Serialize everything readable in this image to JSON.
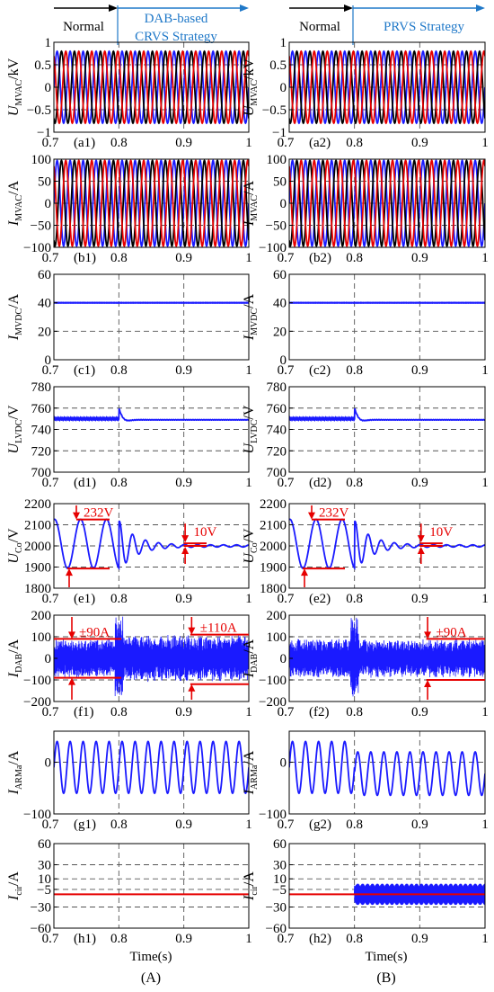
{
  "header": {
    "left": {
      "normal": "Normal",
      "strategy": [
        "DAB-based",
        "CRVS Strategy"
      ]
    },
    "right": {
      "normal": "Normal",
      "strategy": [
        "PRVS Strategy"
      ]
    }
  },
  "columns": [
    "(A)",
    "(B)"
  ],
  "xlabel": "Time(s)",
  "colors": {
    "phase_a": "#1a1aff",
    "phase_b": "#000000",
    "phase_c": "#e60000",
    "dc": "#1a1aff",
    "annotation": "#e60000",
    "strategy_arrow": "#1f78c8"
  },
  "chart_data": [
    {
      "id": "a",
      "type": "line",
      "ylabel": {
        "main": "U",
        "sub": "MVAC",
        "unit": "/kV"
      },
      "ylim": [
        -1,
        1
      ],
      "yticks": [
        -1,
        -0.5,
        0,
        0.5,
        1
      ],
      "ytick_labels": [
        "−1",
        "−0.5",
        "0",
        "0.5",
        "1"
      ],
      "xlim": [
        0.7,
        1
      ],
      "xticks": [
        "0.7",
        "0.8",
        "0.9",
        "1"
      ],
      "panel_labels": [
        "(a1)",
        "(a2)"
      ],
      "series": [
        {
          "kind": "ac3",
          "amplitude": 0.8,
          "frequency_hz": 50
        },
        {
          "kind": "ac3",
          "amplitude": 0.8,
          "frequency_hz": 50
        }
      ]
    },
    {
      "id": "b",
      "type": "line",
      "ylabel": {
        "main": "I",
        "sub": "MVAC",
        "unit": "/A"
      },
      "ylim": [
        -100,
        100
      ],
      "yticks": [
        -100,
        -50,
        0,
        50,
        100
      ],
      "ytick_labels": [
        "−100",
        "−50",
        "0",
        "50",
        "100"
      ],
      "xlim": [
        0.7,
        1
      ],
      "xticks": [
        "0.7",
        "0.8",
        "0.9",
        "1"
      ],
      "panel_labels": [
        "(b1)",
        "(b2)"
      ],
      "series": [
        {
          "kind": "ac3",
          "amplitude": 97,
          "frequency_hz": 50
        },
        {
          "kind": "ac3",
          "amplitude": 97,
          "frequency_hz": 50
        }
      ]
    },
    {
      "id": "c",
      "type": "line",
      "ylabel": {
        "main": "I",
        "sub": "MVDC",
        "unit": "/A"
      },
      "ylim": [
        0,
        60
      ],
      "yticks": [
        0,
        20,
        40,
        60
      ],
      "ytick_labels": [
        "0",
        "20",
        "40",
        "60"
      ],
      "xlim": [
        0.7,
        1
      ],
      "xticks": [
        "0.7",
        "0.8",
        "0.9",
        "1"
      ],
      "panel_labels": [
        "(c1)",
        "(c2)"
      ],
      "series": [
        {
          "kind": "dc",
          "value": 40
        },
        {
          "kind": "dc",
          "value": 40
        }
      ]
    },
    {
      "id": "d",
      "type": "line",
      "ylabel": {
        "main": "U",
        "sub": "LVDC",
        "unit": "/V"
      },
      "ylim": [
        700,
        780
      ],
      "yticks": [
        700,
        720,
        740,
        760,
        780
      ],
      "ytick_labels": [
        "700",
        "720",
        "740",
        "760",
        "780"
      ],
      "xlim": [
        0.7,
        1
      ],
      "xticks": [
        "0.7",
        "0.8",
        "0.9",
        "1"
      ],
      "panel_labels": [
        "(d1)",
        "(d2)"
      ],
      "series": [
        {
          "kind": "lvdc",
          "before": 750,
          "peak": 760,
          "dip": 746,
          "after": 749
        },
        {
          "kind": "lvdc",
          "before": 750,
          "peak": 760,
          "dip": 746,
          "after": 749
        }
      ]
    },
    {
      "id": "e",
      "type": "line",
      "ylabel": {
        "main": "U",
        "sub": "Co",
        "unit": "/V"
      },
      "ylim": [
        1800,
        2200
      ],
      "yticks": [
        1800,
        1900,
        2000,
        2100,
        2200
      ],
      "ytick_labels": [
        "1800",
        "1900",
        "2000",
        "2100",
        "2200"
      ],
      "xlim": [
        0.7,
        1
      ],
      "xticks": [
        "0.7",
        "0.8",
        "0.9",
        "1"
      ],
      "panel_labels": [
        "(e1)",
        "(e2)"
      ],
      "annotations": [
        {
          "before": "232V",
          "after": "10V"
        },
        {
          "before": "232V",
          "after": "10V"
        }
      ],
      "series": [
        {
          "kind": "cap",
          "center": 2010,
          "amp_before": 116,
          "freq_before": 25,
          "amp_after": 5
        },
        {
          "kind": "cap",
          "center": 2010,
          "amp_before": 116,
          "freq_before": 25,
          "amp_after": 5
        }
      ]
    },
    {
      "id": "f",
      "type": "line",
      "ylabel": {
        "main": "I",
        "sub": "DAB",
        "unit": "/A"
      },
      "ylim": [
        -200,
        200
      ],
      "yticks": [
        -200,
        -100,
        0,
        100,
        200
      ],
      "ytick_labels": [
        "−200",
        "−100",
        "0",
        "100",
        "200"
      ],
      "xlim": [
        0.7,
        1
      ],
      "xticks": [
        "0.7",
        "0.8",
        "0.9",
        "1"
      ],
      "panel_labels": [
        "(f1)",
        "(f2)"
      ],
      "annotations": [
        {
          "before": "±90A",
          "after": "±110A"
        },
        {
          "before": "",
          "after": "±90A"
        }
      ],
      "series": [
        {
          "kind": "dab",
          "env_before": 90,
          "env_after": 110
        },
        {
          "kind": "dab",
          "env_before": 90,
          "env_after": 90
        }
      ]
    },
    {
      "id": "g",
      "type": "line",
      "ylabel": {
        "main": "I",
        "sub": "ARMa",
        "unit": "/A"
      },
      "ylim": [
        -100,
        60
      ],
      "yticks": [
        -100,
        0
      ],
      "ytick_labels": [
        "−100",
        "0"
      ],
      "xlim": [
        0.7,
        1
      ],
      "xticks": [
        "0.7",
        "0.8",
        "0.9",
        "1"
      ],
      "panel_labels": [
        "(g1)",
        "(g2)"
      ],
      "series": [
        {
          "kind": "arm",
          "center": -10,
          "amp_before": 50,
          "amp_after": 50,
          "center_after": -10
        },
        {
          "kind": "arm",
          "center": -10,
          "amp_before": 50,
          "amp_after": 42,
          "center_after": -22
        }
      ]
    },
    {
      "id": "h",
      "type": "line",
      "ylabel": {
        "main": "I",
        "sub": "cir",
        "unit": "/A"
      },
      "ylim": [
        -60,
        60
      ],
      "yticks": [
        -60,
        -30,
        -5,
        10,
        30,
        60
      ],
      "ytick_labels": [
        "−60",
        "−30",
        "−5",
        "10",
        "30",
        "60"
      ],
      "xlim": [
        0.7,
        1
      ],
      "xticks": [
        "0.7",
        "0.8",
        "0.9",
        "1"
      ],
      "panel_labels": [
        "(h1)",
        "(h2)"
      ],
      "series": [
        {
          "kind": "cir",
          "value": -12,
          "band_after": [
            -12,
            -12
          ]
        },
        {
          "kind": "cir",
          "value": -12,
          "band_after": [
            -27,
            3
          ]
        }
      ]
    }
  ]
}
